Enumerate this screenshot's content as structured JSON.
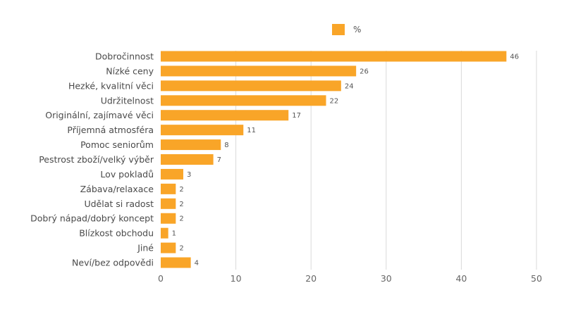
{
  "chart_data": {
    "type": "bar",
    "orientation": "horizontal",
    "categories": [
      "Dobročinnost",
      "Nízké ceny",
      "Hezké, kvalitní věci",
      "Udržitelnost",
      "Originální, zajímavé věci",
      "Příjemná atmosféra",
      "Pomoc seniorům",
      "Pestrost zboží/velký výběr",
      "Lov pokladů",
      "Zábava/relaxace",
      "Udělat si radost",
      "Dobrý nápad/dobrý koncept",
      "Blízkost obchodu",
      "Jiné",
      "Neví/bez odpovědi"
    ],
    "series": [
      {
        "name": "%",
        "values": [
          46,
          26,
          24,
          22,
          17,
          11,
          8,
          7,
          3,
          2,
          2,
          2,
          1,
          2,
          4
        ],
        "color": "#f9a528"
      }
    ],
    "title": "",
    "xlabel": "",
    "ylabel": "",
    "xlim": [
      0,
      50
    ],
    "x_ticks": [
      0,
      10,
      20,
      30,
      40,
      50
    ],
    "grid": true,
    "gridline_color": "#d9d9d9",
    "legend_position": "top-center",
    "data_labels": true
  }
}
